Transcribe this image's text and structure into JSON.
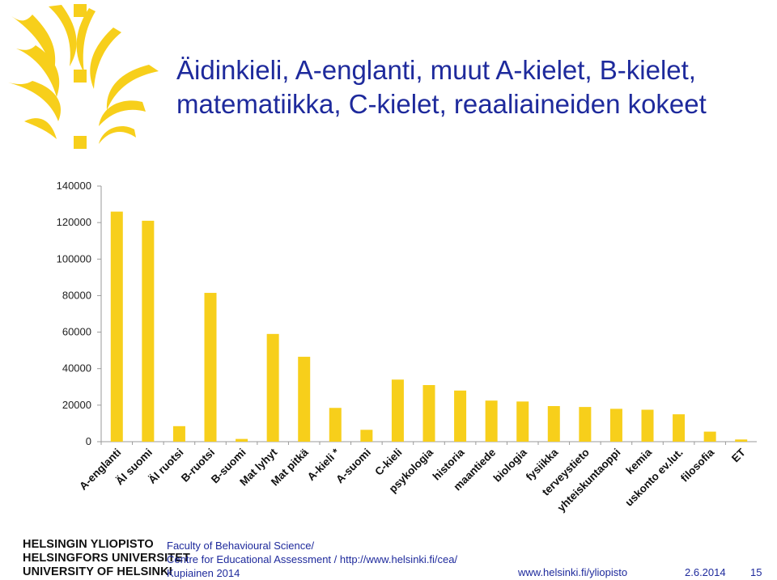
{
  "slide": {
    "title_line1": "Äidinkieli, A-englanti, muut A-kielet, B-kielet,",
    "title_line2": "matematiikka, C-kielet, reaaliaineiden kokeet",
    "colors": {
      "bar": "#f7cf1b",
      "title": "#1e2a9c",
      "logo": "#f7cf1b"
    },
    "logo_icon": "university-flame-logo"
  },
  "chart_data": {
    "type": "bar",
    "title": "",
    "xlabel": "",
    "ylabel": "",
    "ylim": [
      0,
      140000
    ],
    "yticks": [
      "0",
      "20000",
      "40000",
      "60000",
      "80000",
      "100000",
      "120000",
      "140000"
    ],
    "grid": false,
    "categories": [
      "A-englanti",
      "ÄI suomi",
      "ÄI ruotsi",
      "B-ruotsi",
      "B-suomi",
      "Mat lyhyt",
      "Mat pitkä",
      "A-kieli *",
      "A-suomi",
      "C-kieli",
      "psykologia",
      "historia",
      "maantiede",
      "biologia",
      "fysiikka",
      "terveystieto",
      "yhteiskuntaoppi",
      "kemia",
      "uskonto ev.lut.",
      "filosofia",
      "ET"
    ],
    "values": [
      126000,
      121000,
      8500,
      81500,
      1500,
      59000,
      46500,
      18500,
      6500,
      34000,
      31000,
      28000,
      22500,
      22000,
      19500,
      19000,
      18000,
      17500,
      15000,
      5500,
      1200
    ]
  },
  "footer": {
    "uni_lines": [
      "HELSINGIN YLIOPISTO",
      "HELSINGFORS UNIVERSITET",
      "UNIVERSITY OF HELSINKI"
    ],
    "info_lines": [
      "Faculty of Behavioural Science/",
      "Centre for Educational Assessment /  http://www.helsinki.fi/cea/",
      "Kupiainen 2014"
    ],
    "url": "www.helsinki.fi/yliopisto",
    "date": "2.6.2014",
    "page": "15"
  }
}
